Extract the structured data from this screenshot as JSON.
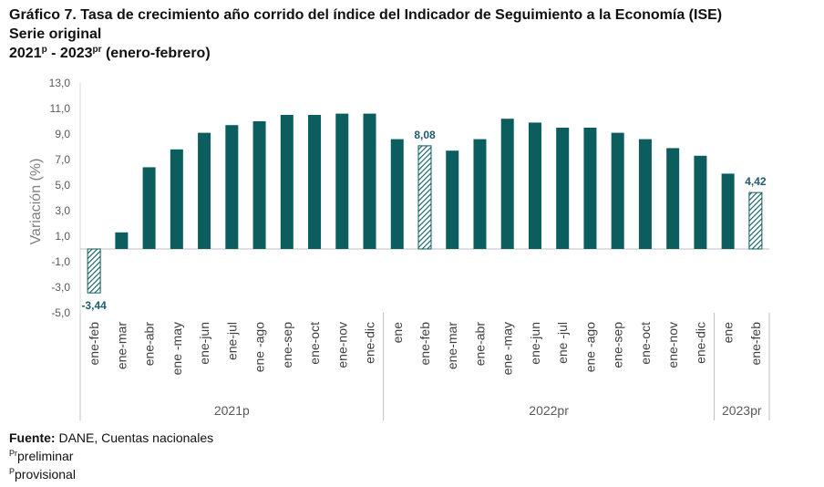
{
  "title": {
    "line1": "Gráfico 7. Tasa de crecimiento año corrido del índice del Indicador de Seguimiento a la Economía (ISE)",
    "line2": "Serie original",
    "line3_a": "2021",
    "line3_sup1": "p",
    "line3_b": " - 2023",
    "line3_sup2": "pr",
    "line3_c": " (enero-febrero)"
  },
  "footer": {
    "source_bold": "Fuente:",
    "source_text": " DANE, Cuentas nacionales",
    "note1_sup": "Pr",
    "note1_text": "preliminar",
    "note2_sup": "P",
    "note2_text": "provisional"
  },
  "chart_data": {
    "type": "bar",
    "ylabel": "Variación (%)",
    "ylim": [
      -5.0,
      13.0
    ],
    "yticks": [
      "13,0",
      "11,0",
      "9,0",
      "7,0",
      "5,0",
      "3,0",
      "1,0",
      "-1,0",
      "-3,0",
      "-5,0"
    ],
    "ytick_values": [
      13,
      11,
      9,
      7,
      5,
      3,
      1,
      -1,
      -3,
      -5
    ],
    "categories": [
      "ene-feb",
      "ene-mar",
      "ene-abr",
      "ene -may",
      "ene-jun",
      "ene-jul",
      "ene -ago",
      "ene-sep",
      "ene-oct",
      "ene-nov",
      "ene-dic",
      "ene",
      "ene-feb",
      "ene-mar",
      "ene-abr",
      "ene -may",
      "ene-jun",
      "ene -jul",
      "ene -ago",
      "ene-sep",
      "ene-oct",
      "ene-nov",
      "ene-dic",
      "ene",
      "ene-feb"
    ],
    "values": [
      -3.44,
      1.3,
      6.4,
      7.8,
      9.1,
      9.7,
      10.0,
      10.5,
      10.5,
      10.6,
      10.6,
      8.6,
      8.08,
      7.7,
      8.6,
      10.2,
      9.9,
      9.5,
      9.5,
      9.1,
      8.6,
      7.9,
      7.3,
      5.9,
      4.42
    ],
    "highlighted_indices": [
      0,
      12,
      24
    ],
    "data_labels": [
      {
        "index": 0,
        "text": "-3,44"
      },
      {
        "index": 12,
        "text": "8,08"
      },
      {
        "index": 24,
        "text": "4,42"
      }
    ],
    "groups": [
      {
        "label": "2021p",
        "start": 0,
        "end": 10
      },
      {
        "label": "2022pr",
        "start": 11,
        "end": 22
      },
      {
        "label": "2023pr",
        "start": 23,
        "end": 24
      }
    ],
    "bar_color": "#0b5d5e",
    "label_color": "#1f5b6e",
    "grid": false,
    "legend": "none"
  }
}
